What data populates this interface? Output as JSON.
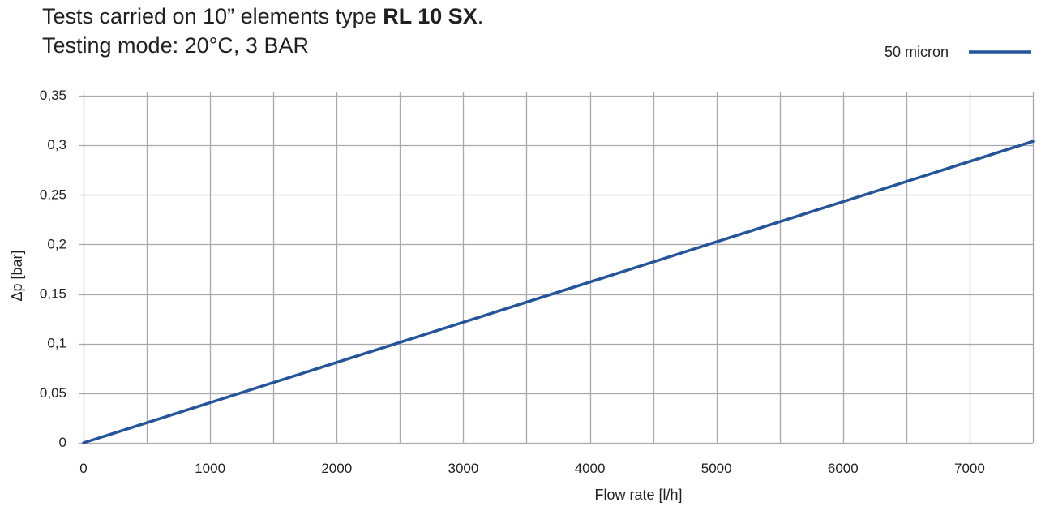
{
  "header": {
    "title_prefix": "Tests carried on 10” elements type ",
    "title_bold": "RL 10 SX",
    "title_suffix": ".",
    "subtitle": "Testing mode: 20°C, 3 BAR"
  },
  "colors": {
    "series": "#24549a",
    "grid": "#a7a9ac",
    "text": "#231f20"
  },
  "chart_data": {
    "type": "line",
    "title": "Tests carried on 10” elements type RL 10 SX.",
    "subtitle": "Testing mode: 20°C, 3 BAR",
    "xlabel": "Flow rate [l/h]",
    "ylabel": "Δp [bar]",
    "xlim": [
      0,
      7500
    ],
    "ylim": [
      0,
      0.35
    ],
    "x_grid_step": 500,
    "y_grid_step": 0.05,
    "x_ticks": [
      0,
      1000,
      2000,
      3000,
      4000,
      5000,
      6000,
      7000
    ],
    "x_tick_labels": [
      "0",
      "1000",
      "2000",
      "3000",
      "4000",
      "5000",
      "6000",
      "7000"
    ],
    "y_ticks": [
      0,
      0.05,
      0.1,
      0.15,
      0.2,
      0.25,
      0.3,
      0.35
    ],
    "y_tick_labels": [
      "0",
      "0,05",
      "0,1",
      "0,15",
      "0,2",
      "0,25",
      "0,3",
      "0,35"
    ],
    "grid": true,
    "legend_position": "top-right",
    "series": [
      {
        "name": "50 micron",
        "x": [
          0,
          7500
        ],
        "y": [
          0,
          0.304
        ]
      }
    ]
  }
}
